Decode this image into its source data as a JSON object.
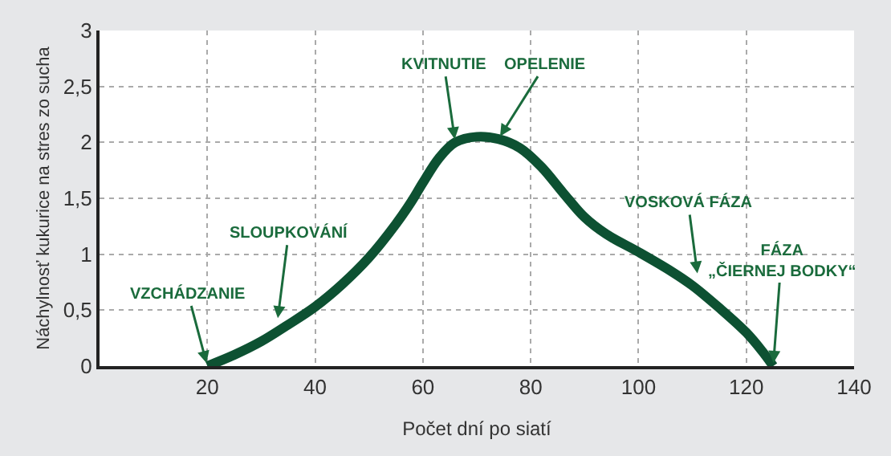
{
  "chart_data": {
    "type": "line",
    "xlabel": "Počet dní po siatí",
    "ylabel": "Náchylnosť kukurice na stres zo sucha",
    "x": [
      20,
      25,
      30,
      35,
      40,
      45,
      50,
      55,
      58,
      60,
      63,
      66,
      70,
      74,
      78,
      82,
      86,
      90,
      94,
      100,
      106,
      110,
      115,
      120,
      123,
      125
    ],
    "series": [
      {
        "color": "#0d5132",
        "values": [
          0,
          0.1,
          0.22,
          0.37,
          0.53,
          0.73,
          0.97,
          1.27,
          1.48,
          1.64,
          1.86,
          2.0,
          2.05,
          2.03,
          1.95,
          1.78,
          1.55,
          1.33,
          1.18,
          1.02,
          0.85,
          0.72,
          0.52,
          0.3,
          0.13,
          0
        ]
      }
    ],
    "xlim": [
      0,
      140
    ],
    "xticks": [
      20,
      40,
      60,
      80,
      100,
      120,
      140
    ],
    "ylim": [
      0,
      3
    ],
    "yticks": [
      0,
      {
        "value": 0.5,
        "label": "0,5"
      },
      1,
      {
        "value": 1.5,
        "label": "1,5"
      },
      2,
      {
        "value": 2.5,
        "label": "2,5"
      },
      3
    ],
    "grid": true,
    "line_style": "solid",
    "marker": "none",
    "annotations": [
      {
        "text": "VZCHÁDZANIE",
        "x": 20,
        "y": 0
      },
      {
        "text": "SLOUPKOVÁNÍ",
        "x": 33,
        "y": 0.4
      },
      {
        "text": "KVITNUTIE",
        "x": 66,
        "y": 2.0
      },
      {
        "text": "OPELENIE",
        "x": 74,
        "y": 2.03
      },
      {
        "text": "VOSKOVÁ FÁZA",
        "x": 111,
        "y": 0.8
      },
      {
        "text": "FÁZA\n„ČIERNEJ BODKY“",
        "x": 125,
        "y": 0
      }
    ]
  }
}
